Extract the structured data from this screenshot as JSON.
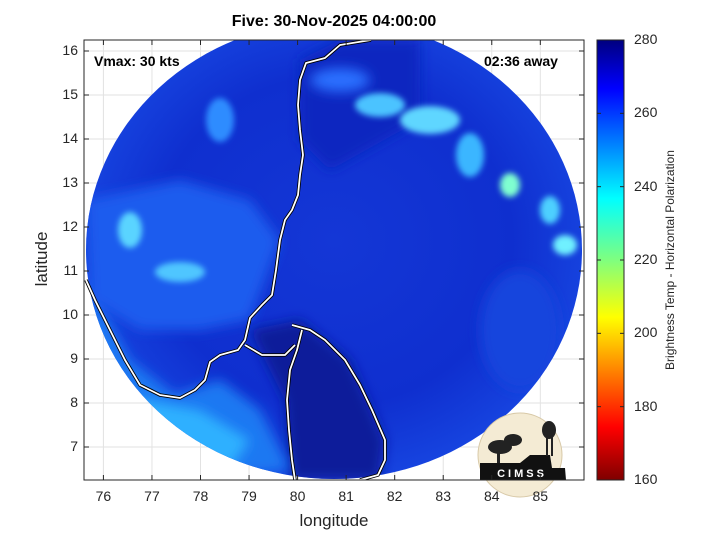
{
  "map": {
    "title": "Five: 30-Nov-2025 04:00:00",
    "xlabel": "longitude",
    "ylabel": "latitude",
    "vmax_label": "Vmax: 30 kts",
    "time_away": "02:36 away",
    "logo_text": "CIMSS",
    "x_ticks": [
      "76",
      "77",
      "78",
      "79",
      "80",
      "81",
      "82",
      "83",
      "84",
      "85"
    ],
    "y_ticks": [
      "16",
      "15",
      "14",
      "13",
      "12",
      "11",
      "10",
      "9",
      "8",
      "7"
    ],
    "colorbar": {
      "label": "Brightness Temp - Horizontal Polarization",
      "ticks": [
        "280",
        "260",
        "240",
        "220",
        "200",
        "180",
        "160"
      ],
      "range": [
        160,
        280
      ]
    },
    "lon_range": [
      75.6,
      85.9
    ],
    "lat_range": [
      6.25,
      16.25
    ],
    "grid": true
  }
}
